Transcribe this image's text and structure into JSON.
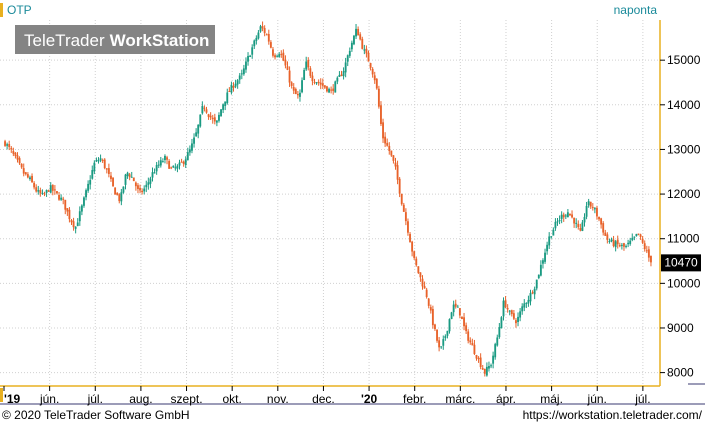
{
  "header": {
    "symbol": "OTP",
    "interval": "naponta",
    "watermark_brand": "TeleTrader",
    "watermark_product": "WorkStation"
  },
  "footer": {
    "copyright": "© 2020 TeleTrader Software GmbH",
    "url": "https://workstation.teletrader.com/"
  },
  "colors": {
    "up": "#1a9a82",
    "down": "#e8622a",
    "grid": "#d0d0d0",
    "axis": "#e8b020",
    "header_text": "#1a8a9a",
    "last_price_bg": "#000000"
  },
  "chart_data": {
    "type": "candlestick",
    "title": "OTP",
    "ylim": [
      7700,
      15900
    ],
    "y_ticks": [
      8000,
      9000,
      10000,
      11000,
      12000,
      13000,
      14000,
      15000
    ],
    "x_labels": [
      "'19",
      "jún.",
      "júl.",
      "aug.",
      "szept.",
      "okt.",
      "nov.",
      "dec.",
      "'20",
      "febr.",
      "márc.",
      "ápr.",
      "máj.",
      "jún.",
      "júl."
    ],
    "last_price": 10470,
    "last_price_label": "10470",
    "close_path": [
      13150,
      12950,
      12700,
      12450,
      12300,
      12050,
      11950,
      12150,
      12000,
      11850,
      11500,
      11250,
      11700,
      12200,
      12700,
      12800,
      12500,
      12100,
      11850,
      12500,
      12350,
      12000,
      12150,
      12450,
      12650,
      12800,
      12550,
      12600,
      12750,
      13000,
      13400,
      14000,
      13750,
      13550,
      14000,
      14300,
      14500,
      14650,
      15050,
      15400,
      15750,
      15550,
      15100,
      15200,
      14800,
      14300,
      14150,
      14950,
      14600,
      14500,
      14400,
      14300,
      14550,
      14800,
      15300,
      15700,
      15250,
      14950,
      14500,
      13300,
      13000,
      12600,
      11850,
      11200,
      10500,
      10100,
      9700,
      9050,
      8450,
      8900,
      9500,
      9400,
      8900,
      8600,
      8300,
      8000,
      8200,
      8800,
      9600,
      9300,
      9150,
      9500,
      9700,
      10000,
      10500,
      11000,
      11300,
      11500,
      11600,
      11400,
      11100,
      11800,
      11700,
      11400,
      11000,
      10900,
      10850,
      10800,
      10950,
      11100,
      10800,
      10470
    ]
  }
}
